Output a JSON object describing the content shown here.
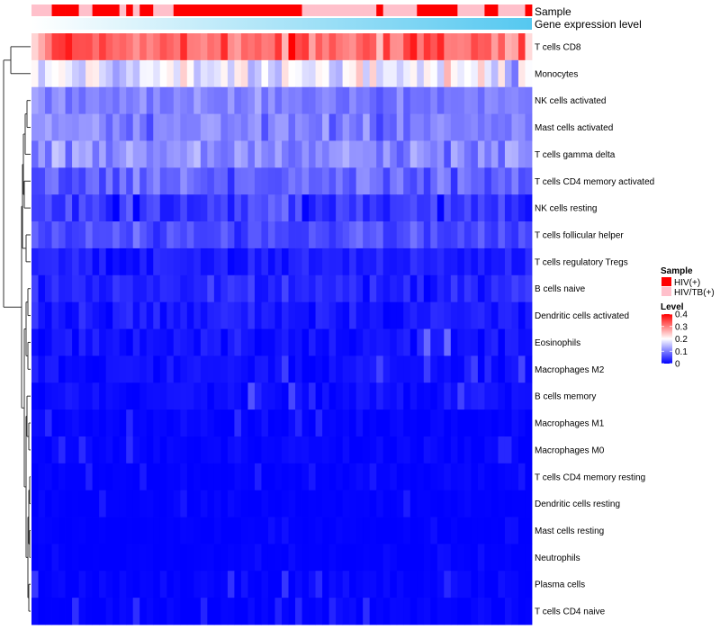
{
  "chart_data": {
    "type": "heatmap",
    "title": "",
    "annotations": {
      "sample": {
        "label": "Sample",
        "values": [
          "HIV/TB(+)",
          "HIV/TB(+)",
          "HIV/TB(+)",
          "HIV(+)",
          "HIV(+)",
          "HIV(+)",
          "HIV(+)",
          "HIV/TB(+)",
          "HIV/TB(+)",
          "HIV(+)",
          "HIV(+)",
          "HIV(+)",
          "HIV(+)",
          "HIV/TB(+)",
          "HIV(+)",
          "HIV/TB(+)",
          "HIV(+)",
          "HIV(+)",
          "HIV/TB(+)",
          "HIV/TB(+)",
          "HIV/TB(+)",
          "HIV(+)",
          "HIV(+)",
          "HIV(+)",
          "HIV(+)",
          "HIV(+)",
          "HIV(+)",
          "HIV(+)",
          "HIV(+)",
          "HIV(+)",
          "HIV(+)",
          "HIV(+)",
          "HIV(+)",
          "HIV(+)",
          "HIV(+)",
          "HIV(+)",
          "HIV(+)",
          "HIV(+)",
          "HIV(+)",
          "HIV(+)",
          "HIV/TB(+)",
          "HIV/TB(+)",
          "HIV/TB(+)",
          "HIV/TB(+)",
          "HIV/TB(+)",
          "HIV/TB(+)",
          "HIV/TB(+)",
          "HIV/TB(+)",
          "HIV/TB(+)",
          "HIV/TB(+)",
          "HIV/TB(+)",
          "HIV(+)",
          "HIV/TB(+)",
          "HIV/TB(+)",
          "HIV/TB(+)",
          "HIV/TB(+)",
          "HIV/TB(+)",
          "HIV(+)",
          "HIV(+)",
          "HIV(+)",
          "HIV(+)",
          "HIV(+)",
          "HIV(+)",
          "HIV/TB(+)",
          "HIV/TB(+)",
          "HIV/TB(+)",
          "HIV/TB(+)",
          "HIV(+)",
          "HIV(+)",
          "HIV/TB(+)",
          "HIV/TB(+)",
          "HIV/TB(+)",
          "HIV/TB(+)",
          "HIV(+)"
        ]
      },
      "gene_expression": {
        "label": "Gene expression level",
        "color_low": "#ffffff",
        "color_high": "#55c8f0"
      }
    },
    "rows": [
      "T cells CD8",
      "Monocytes",
      "NK cells activated",
      "Mast cells activated",
      "T cells gamma delta",
      "T cells CD4 memory activated",
      "NK cells resting",
      "T cells follicular helper",
      "T cells regulatory  Tregs",
      "B cells naive",
      "Dendritic cells activated",
      "Eosinophils",
      "Macrophages M2",
      "B cells memory",
      "Macrophages M1",
      "Macrophages M0",
      "T cells CD4 memory resting",
      "Dendritic cells resting",
      "Mast cells resting",
      "Neutrophils",
      "Plasma cells",
      "T cells CD4 naive"
    ],
    "column_count": 74,
    "row_profiles": {
      "T cells CD8": {
        "mean": 0.31,
        "spread": 0.09
      },
      "Monocytes": {
        "mean": 0.18,
        "spread": 0.09
      },
      "NK cells activated": {
        "mean": 0.1,
        "spread": 0.035
      },
      "Mast cells activated": {
        "mean": 0.1,
        "spread": 0.05
      },
      "T cells gamma delta": {
        "mean": 0.11,
        "spread": 0.05
      },
      "T cells CD4 memory activated": {
        "mean": 0.08,
        "spread": 0.05
      },
      "NK cells resting": {
        "mean": 0.04,
        "spread": 0.05
      },
      "T cells follicular helper": {
        "mean": 0.06,
        "spread": 0.04
      },
      "T cells regulatory  Tregs": {
        "mean": 0.02,
        "spread": 0.025
      },
      "B cells naive": {
        "mean": 0.03,
        "spread": 0.03
      },
      "Dendritic cells activated": {
        "mean": 0.02,
        "spread": 0.025
      },
      "Eosinophils": {
        "mean": 0.015,
        "spread": 0.025
      },
      "Macrophages M2": {
        "mean": 0.01,
        "spread": 0.02
      },
      "B cells memory": {
        "mean": 0.01,
        "spread": 0.02
      },
      "Macrophages M1": {
        "mean": 0.003,
        "spread": 0.012
      },
      "Macrophages M0": {
        "mean": 0.004,
        "spread": 0.012
      },
      "T cells CD4 memory resting": {
        "mean": 0.002,
        "spread": 0.008
      },
      "Dendritic cells resting": {
        "mean": 0.002,
        "spread": 0.007
      },
      "Mast cells resting": {
        "mean": 0.001,
        "spread": 0.004
      },
      "Neutrophils": {
        "mean": 0.001,
        "spread": 0.004
      },
      "Plasma cells": {
        "mean": 0.004,
        "spread": 0.015
      },
      "T cells CD4 naive": {
        "mean": 0.003,
        "spread": 0.012
      }
    },
    "color_scale": {
      "min": 0,
      "mid": 0.2,
      "max": 0.4,
      "low": "#0000ff",
      "midcolor": "#ffffff",
      "high": "#ff0000"
    },
    "legend": {
      "sample_title": "Sample",
      "sample_entries": [
        {
          "label": "HIV(+)",
          "color": "#ff0000"
        },
        {
          "label": "HIV/TB(+)",
          "color": "#ffc0cb"
        }
      ],
      "level_title": "Level",
      "level_ticks": [
        "0.4",
        "0.3",
        "0.2",
        "0.1",
        "0"
      ],
      "level_tick_values": [
        0.4,
        0.3,
        0.2,
        0.1,
        0
      ]
    },
    "dendrogram": "rows clustered; top split separates T cells CD8 and Monocytes from the remaining cell types"
  }
}
